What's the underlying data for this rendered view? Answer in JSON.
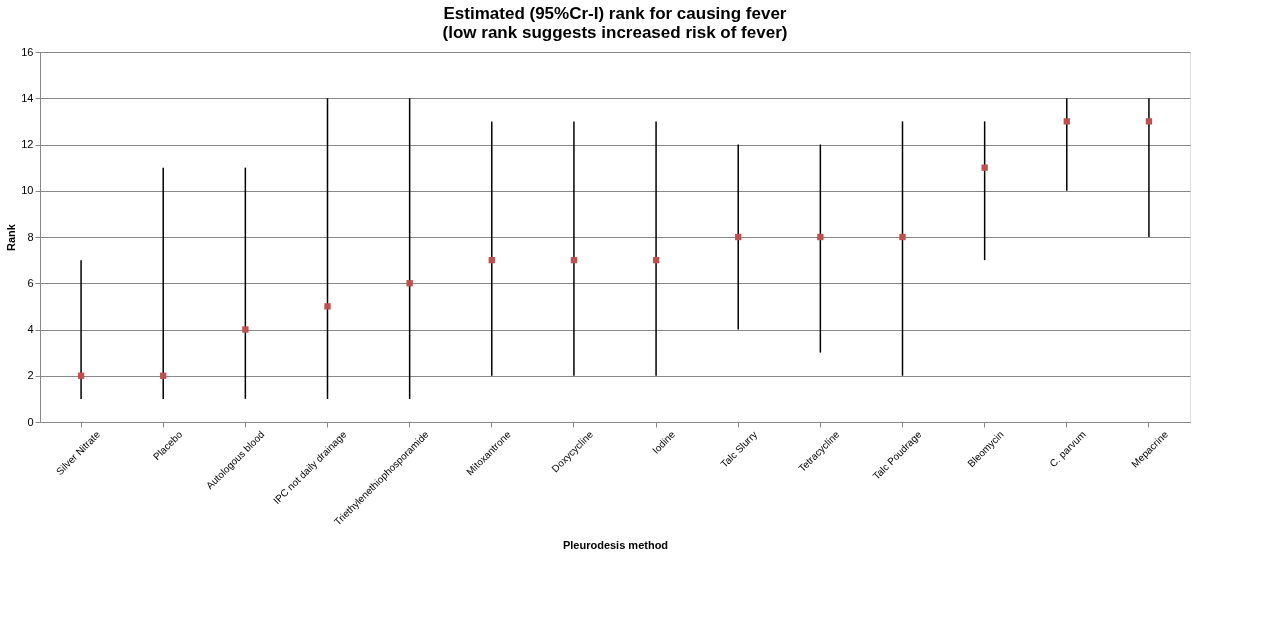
{
  "chart_data": {
    "type": "scatter",
    "title": [
      "Estimated (95%Cr-I) rank for causing fever",
      "(low rank suggests increased risk of fever)"
    ],
    "xlabel": "Pleurodesis method",
    "ylabel": "Rank",
    "categories": [
      "Silver Nitrate",
      "Placebo",
      "Autologous blood",
      "IPC not daily drainage",
      "Triethylenethiophosporamide",
      "Mitoxantrone",
      "Doxycycline",
      "Iodine",
      "Talc Slurry",
      "Tetracycline",
      "Talc Poudrage",
      "Bleomycin",
      "C. parvum",
      "Mepacrine"
    ],
    "series": [
      {
        "color": "#c0504d",
        "values": [
          2,
          2,
          4,
          5,
          6,
          7,
          7,
          7,
          8,
          8,
          8,
          11,
          13,
          13
        ],
        "errors": [
          [
            1,
            7
          ],
          [
            1,
            11
          ],
          [
            1,
            11
          ],
          [
            1,
            14
          ],
          [
            1,
            14
          ],
          [
            2,
            13
          ],
          [
            2,
            13
          ],
          [
            2,
            13
          ],
          [
            4,
            12
          ],
          [
            3,
            12
          ],
          [
            2,
            13
          ],
          [
            7,
            13
          ],
          [
            10,
            14
          ],
          [
            8,
            14
          ]
        ]
      }
    ],
    "ylim": [
      0,
      16
    ],
    "yticks": [
      0,
      2,
      4,
      6,
      8,
      10,
      12,
      14,
      16
    ],
    "grid": "y",
    "legend": false,
    "marker": "square"
  }
}
